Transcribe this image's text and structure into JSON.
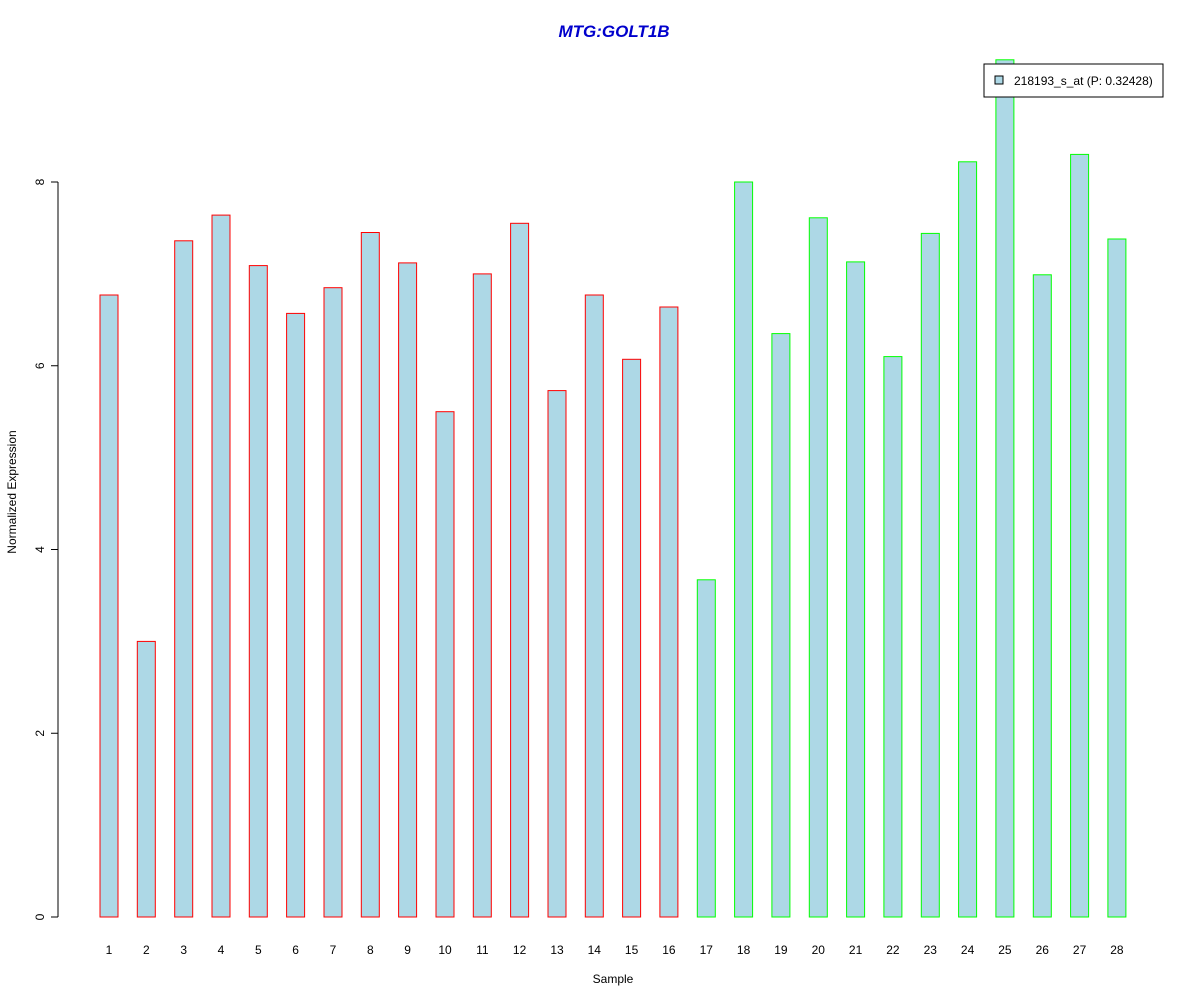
{
  "colors": {
    "bar_fill": "#add8e6",
    "group1_border": "#ff0000",
    "group2_border": "#00ff00",
    "title": "#0000cc",
    "axis": "#000000"
  },
  "chart_data": {
    "type": "bar",
    "title": "MTG:GOLT1B",
    "xlabel": "Sample",
    "ylabel": "Normalized Expression",
    "ylim": [
      0,
      9.5
    ],
    "yticks": [
      0,
      2,
      4,
      6,
      8
    ],
    "grid": false,
    "legend": {
      "placement": "top-right",
      "label": "218193_s_at (P: 0.32428)"
    },
    "categories": [
      "1",
      "2",
      "3",
      "4",
      "5",
      "6",
      "7",
      "8",
      "9",
      "10",
      "11",
      "12",
      "13",
      "14",
      "15",
      "16",
      "17",
      "18",
      "19",
      "20",
      "21",
      "22",
      "23",
      "24",
      "25",
      "26",
      "27",
      "28"
    ],
    "series": [
      {
        "name": "218193_s_at (P: 0.32428)",
        "values": [
          6.77,
          3.0,
          7.36,
          7.64,
          7.09,
          6.57,
          6.85,
          7.45,
          7.12,
          5.5,
          7.0,
          7.55,
          5.73,
          6.77,
          6.07,
          6.64,
          3.67,
          8.0,
          6.35,
          7.61,
          7.13,
          6.1,
          7.44,
          8.22,
          9.33,
          6.99,
          8.3,
          7.38
        ]
      }
    ],
    "groups": [
      1,
      1,
      1,
      1,
      1,
      1,
      1,
      1,
      1,
      1,
      1,
      1,
      1,
      1,
      1,
      1,
      2,
      2,
      2,
      2,
      2,
      2,
      2,
      2,
      2,
      2,
      2,
      2
    ]
  }
}
